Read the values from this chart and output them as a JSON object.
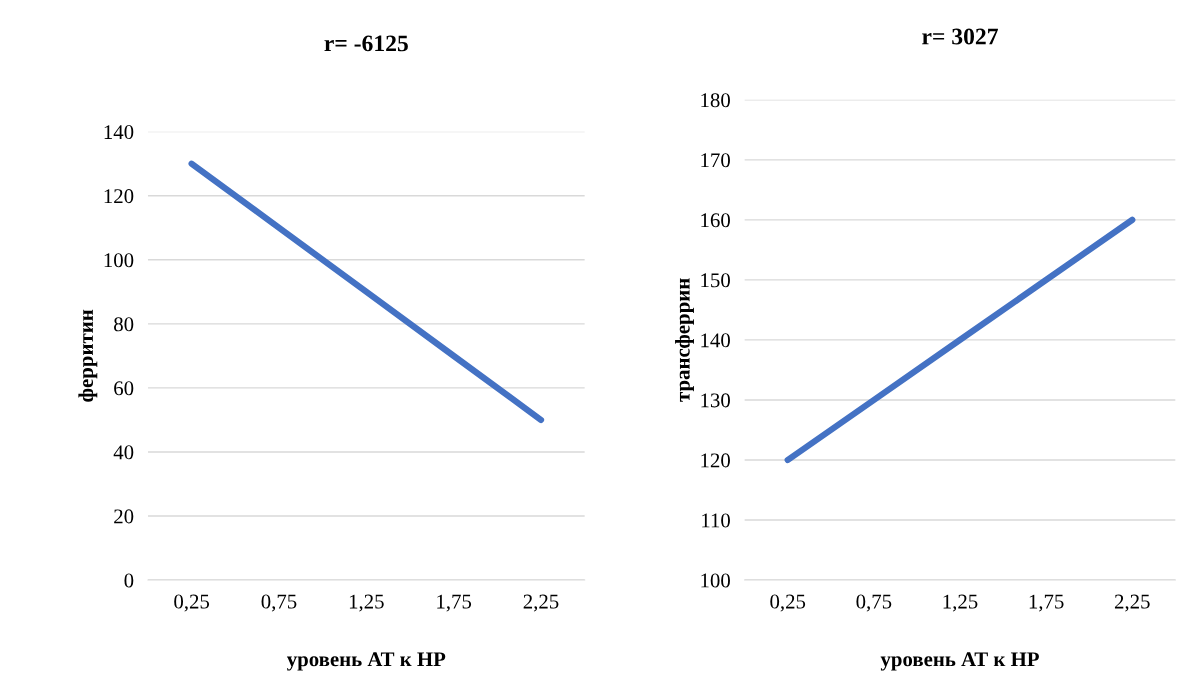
{
  "chart_data": [
    {
      "type": "line",
      "title": "r= -6125",
      "xlabel": "уровень АТ к НР",
      "ylabel": "ферритин",
      "categories": [
        "0,25",
        "0,75",
        "1,25",
        "1,75",
        "2,25"
      ],
      "series": [
        {
          "color": "#4472c4",
          "values": [
            130,
            110,
            90,
            70,
            50
          ]
        }
      ],
      "ylim": [
        0,
        140
      ],
      "yticks": [
        0,
        20,
        40,
        60,
        80,
        100,
        120,
        140
      ],
      "grid": "y",
      "marker": "none",
      "line_style": "solid"
    },
    {
      "type": "line",
      "title": "r= 3027",
      "xlabel": "уровень АТ к НР",
      "ylabel": "трансферрин",
      "categories": [
        "0,25",
        "0,75",
        "1,25",
        "1,75",
        "2,25"
      ],
      "series": [
        {
          "color": "#4472c4",
          "values": [
            120,
            130,
            140,
            150,
            160
          ]
        }
      ],
      "ylim": [
        100,
        180
      ],
      "yticks": [
        100,
        110,
        120,
        130,
        140,
        150,
        160,
        170,
        180
      ],
      "grid": "y",
      "marker": "none",
      "line_style": "solid"
    }
  ]
}
